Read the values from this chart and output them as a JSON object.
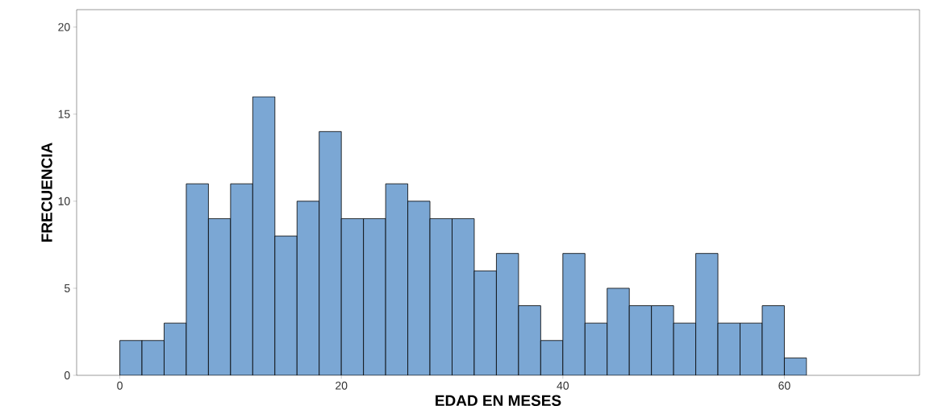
{
  "chart_data": {
    "type": "histogram",
    "xlabel": "EDAD EN MESES",
    "ylabel": "FRECUENCIA",
    "bins": [
      0,
      2,
      4,
      6,
      8,
      10,
      12,
      14,
      16,
      18,
      20,
      22,
      24,
      26,
      28,
      30,
      32,
      34,
      36,
      38,
      40,
      42,
      44,
      46,
      48,
      50,
      52,
      54,
      56,
      58,
      60,
      62
    ],
    "values": [
      2,
      2,
      3,
      11,
      9,
      11,
      16,
      8,
      10,
      14,
      9,
      9,
      11,
      10,
      9,
      9,
      6,
      7,
      4,
      2,
      7,
      3,
      5,
      4,
      4,
      3,
      7,
      3,
      3,
      4,
      1
    ],
    "color": "#7ba7d4",
    "xlim": [
      -3.9,
      72.2
    ],
    "ylim": [
      0,
      21
    ],
    "xticks": [
      0,
      20,
      40,
      60
    ],
    "yticks": [
      0,
      5,
      10,
      15,
      20
    ]
  }
}
